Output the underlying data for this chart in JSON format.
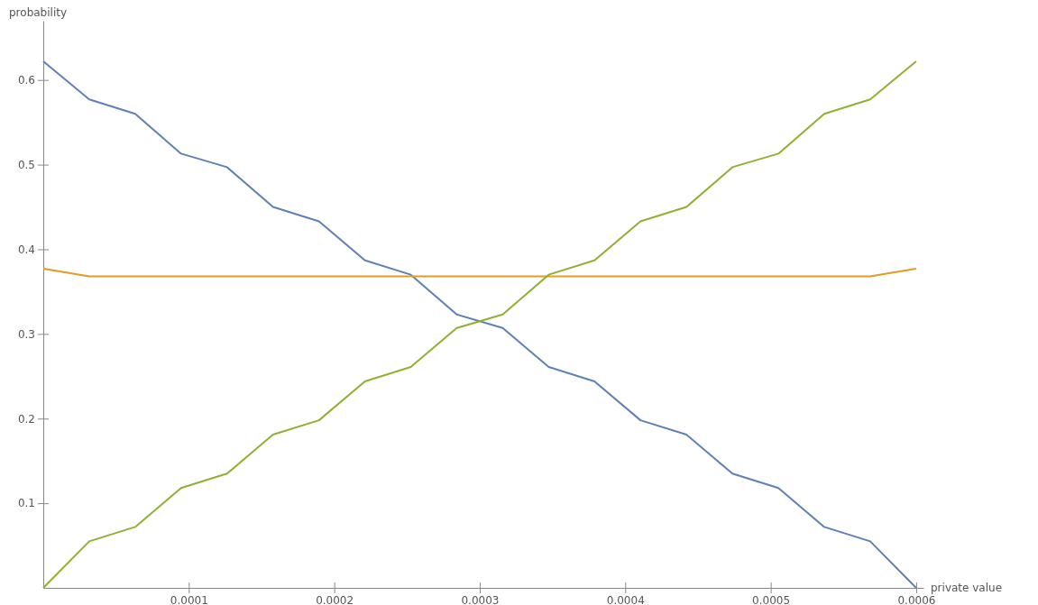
{
  "chart_data": {
    "type": "line",
    "xlabel": "private value",
    "ylabel": "probability",
    "x": [
      0,
      3.16e-05,
      6.32e-05,
      9.47e-05,
      0.0001263,
      0.0001579,
      0.0001895,
      0.0002211,
      0.0002526,
      0.0002842,
      0.0003158,
      0.0003474,
      0.0003789,
      0.0004105,
      0.0004421,
      0.0004737,
      0.0005053,
      0.0005368,
      0.0005684,
      0.0006
    ],
    "series": [
      {
        "color": "#5e81b5",
        "values": [
          0.622,
          0.577,
          0.56,
          0.513,
          0.497,
          0.45,
          0.433,
          0.387,
          0.37,
          0.323,
          0.307,
          0.261,
          0.244,
          0.198,
          0.181,
          0.135,
          0.118,
          0.072,
          0.055,
          0
        ]
      },
      {
        "color": "#e19c24",
        "values": [
          0.377,
          0.368,
          0.368,
          0.368,
          0.368,
          0.368,
          0.368,
          0.368,
          0.368,
          0.368,
          0.368,
          0.368,
          0.368,
          0.368,
          0.368,
          0.368,
          0.368,
          0.368,
          0.368,
          0.377
        ]
      },
      {
        "color": "#8fb032",
        "values": [
          0,
          0.055,
          0.072,
          0.118,
          0.135,
          0.181,
          0.198,
          0.244,
          0.261,
          0.307,
          0.323,
          0.37,
          0.387,
          0.433,
          0.45,
          0.497,
          0.513,
          0.56,
          0.577,
          0.622
        ]
      }
    ],
    "xlim": [
      0,
      0.000605
    ],
    "ylim": [
      0,
      0.67
    ],
    "xticks": [
      0.0001,
      0.0002,
      0.0003,
      0.0004,
      0.0005,
      0.0006
    ],
    "yticks": [
      0.1,
      0.2,
      0.3,
      0.4,
      0.5,
      0.6
    ],
    "grid": false,
    "marker": "none",
    "line_style": "solid"
  }
}
